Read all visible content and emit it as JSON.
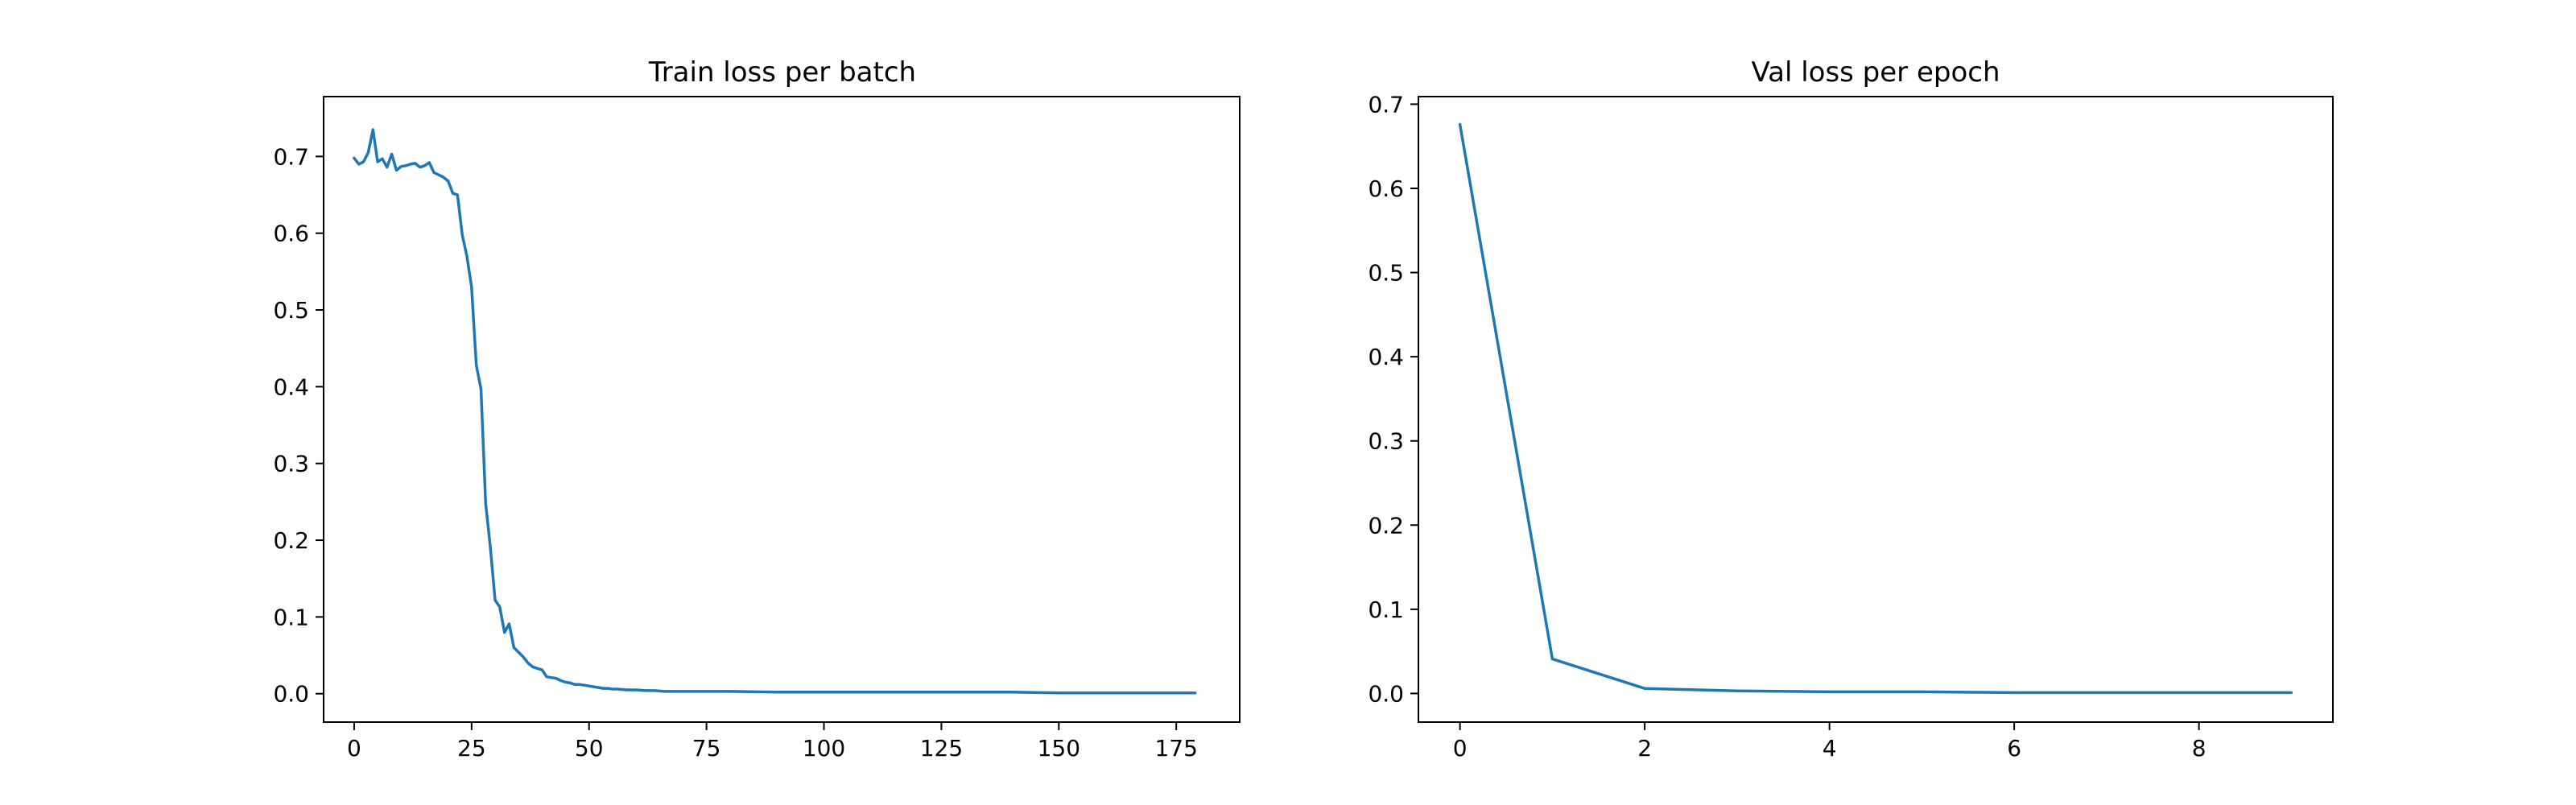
{
  "chart_data": [
    {
      "type": "line",
      "title": "Train loss per batch",
      "xlabel": "",
      "ylabel": "",
      "xlim": [
        -6.5,
        188.5
      ],
      "ylim": [
        -0.037,
        0.778
      ],
      "xticks": [
        0,
        25,
        50,
        75,
        100,
        125,
        150,
        175
      ],
      "xtick_labels": [
        "0",
        "25",
        "50",
        "75",
        "100",
        "125",
        "150",
        "175"
      ],
      "yticks": [
        0.0,
        0.1,
        0.2,
        0.3,
        0.4,
        0.5,
        0.6,
        0.7
      ],
      "ytick_labels": [
        "0.0",
        "0.1",
        "0.2",
        "0.3",
        "0.4",
        "0.5",
        "0.6",
        "0.7"
      ],
      "grid": false,
      "color": "#1f77b4",
      "series": [
        {
          "x": [
            0,
            1,
            2,
            3,
            4,
            5,
            6,
            7,
            8,
            9,
            10,
            11,
            12,
            13,
            14,
            15,
            16,
            17,
            18,
            19,
            20,
            21,
            22,
            23,
            24,
            25,
            26,
            27,
            28,
            29,
            30,
            31,
            32,
            33,
            34,
            35,
            36,
            37,
            38,
            39,
            40,
            41,
            42,
            43,
            44,
            45,
            46,
            47,
            48,
            49,
            50,
            51,
            52,
            53,
            54,
            55,
            56,
            58,
            60,
            62,
            64,
            66,
            70,
            75,
            80,
            90,
            100,
            110,
            120,
            130,
            140,
            150,
            160,
            170,
            179
          ],
          "y": [
            0.698,
            0.69,
            0.693,
            0.705,
            0.735,
            0.693,
            0.697,
            0.686,
            0.703,
            0.682,
            0.687,
            0.688,
            0.69,
            0.691,
            0.686,
            0.688,
            0.692,
            0.679,
            0.676,
            0.673,
            0.668,
            0.652,
            0.65,
            0.598,
            0.57,
            0.53,
            0.428,
            0.397,
            0.248,
            0.19,
            0.122,
            0.113,
            0.08,
            0.091,
            0.06,
            0.054,
            0.048,
            0.04,
            0.035,
            0.033,
            0.031,
            0.022,
            0.021,
            0.02,
            0.017,
            0.015,
            0.014,
            0.012,
            0.012,
            0.011,
            0.01,
            0.009,
            0.008,
            0.007,
            0.007,
            0.006,
            0.006,
            0.005,
            0.005,
            0.004,
            0.004,
            0.003,
            0.003,
            0.003,
            0.003,
            0.002,
            0.002,
            0.002,
            0.002,
            0.002,
            0.002,
            0.001,
            0.001,
            0.001,
            0.001
          ]
        }
      ]
    },
    {
      "type": "line",
      "title": "Val loss per epoch",
      "xlabel": "",
      "ylabel": "",
      "xlim": [
        -0.45,
        9.45
      ],
      "ylim": [
        -0.034,
        0.709
      ],
      "xticks": [
        0,
        2,
        4,
        6,
        8
      ],
      "xtick_labels": [
        "0",
        "2",
        "4",
        "6",
        "8"
      ],
      "yticks": [
        0.0,
        0.1,
        0.2,
        0.3,
        0.4,
        0.5,
        0.6,
        0.7
      ],
      "ytick_labels": [
        "0.0",
        "0.1",
        "0.2",
        "0.3",
        "0.4",
        "0.5",
        "0.6",
        "0.7"
      ],
      "grid": false,
      "color": "#1f77b4",
      "series": [
        {
          "x": [
            0,
            1,
            2,
            3,
            4,
            5,
            6,
            7,
            8,
            9
          ],
          "y": [
            0.676,
            0.041,
            0.006,
            0.003,
            0.002,
            0.002,
            0.001,
            0.001,
            0.001,
            0.001
          ]
        }
      ]
    }
  ]
}
